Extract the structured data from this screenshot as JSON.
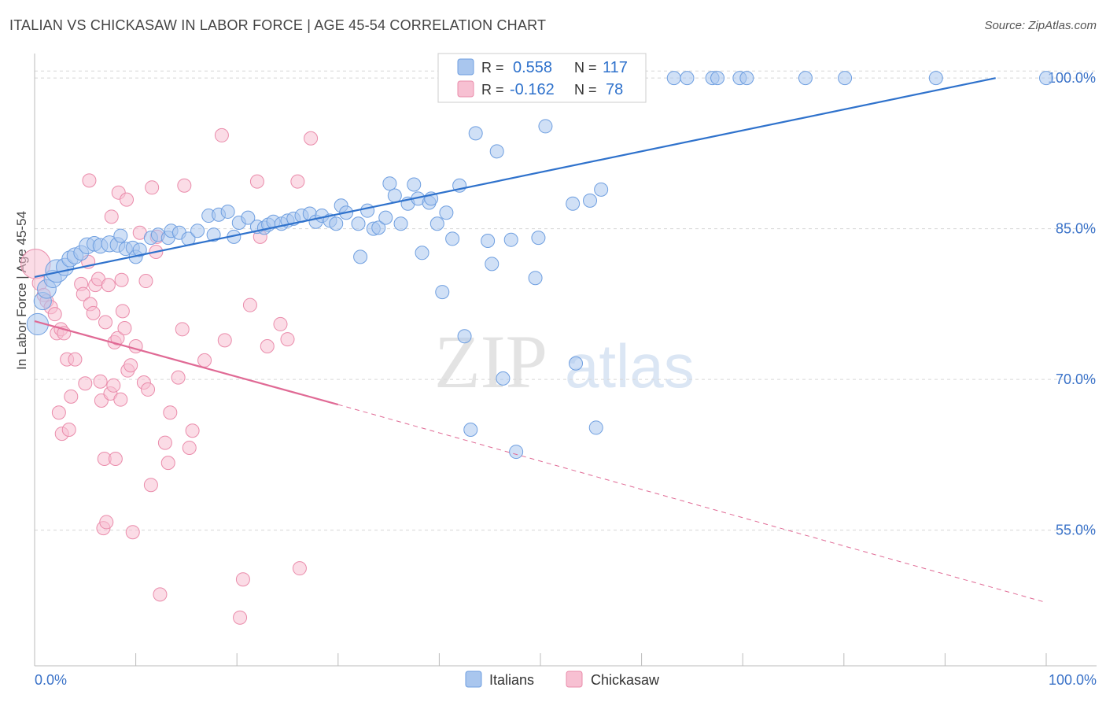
{
  "header": {
    "title": "ITALIAN VS CHICKASAW IN LABOR FORCE | AGE 45-54 CORRELATION CHART",
    "source": "Source: ZipAtlas.com"
  },
  "watermark": {
    "zip": "ZIP",
    "atlas": "atlas"
  },
  "legend_box": {
    "rows": [
      {
        "r_label": "R =",
        "r_value": "0.558",
        "n_label": "N =",
        "n_value": "117"
      },
      {
        "r_label": "R =",
        "r_value": "-0.162",
        "n_label": "N =",
        "n_value": "78"
      }
    ]
  },
  "bottom_legend": {
    "italians": "Italians",
    "chickasaw": "Chickasaw"
  },
  "colors": {
    "italians_fill": "#a9c6ee",
    "italians_stroke": "#6f9fe0",
    "italians_line": "#2f72cc",
    "chickasaw_fill": "#f7c0d2",
    "chickasaw_stroke": "#ea8cab",
    "chickasaw_line": "#e06a95",
    "axis_text": "#3a72c8",
    "grid": "#d8d8d8"
  },
  "chart_data": {
    "type": "scatter",
    "title": "ITALIAN VS CHICKASAW IN LABOR FORCE | AGE 45-54 CORRELATION CHART",
    "ylabel": "In Labor Force | Age 45-54",
    "xlabel": "",
    "xlim": [
      0,
      100
    ],
    "ylim": [
      41.5,
      101.5
    ],
    "x_tick_labels": [
      "0.0%",
      "100.0%"
    ],
    "y_tick_values": [
      55,
      70,
      85,
      100
    ],
    "y_tick_labels": [
      "55.0%",
      "70.0%",
      "85.0%",
      "100.0%"
    ],
    "grid": true,
    "legend_position": "top-center",
    "series": [
      {
        "name": "Italians",
        "R": 0.558,
        "N": 117,
        "trend": {
          "x0": 0,
          "y0": 80.2,
          "x1": 95,
          "y1": 100,
          "dashed_to": null
        },
        "points": [
          [
            0.3,
            75.5,
            1.6
          ],
          [
            0.8,
            77.8,
            1.3
          ],
          [
            1.2,
            79.0,
            1.4
          ],
          [
            1.8,
            80.0,
            1.3
          ],
          [
            2.2,
            80.8,
            1.7
          ],
          [
            3.0,
            81.2,
            1.3
          ],
          [
            3.5,
            82.0,
            1.2
          ],
          [
            4.0,
            82.3,
            1.2
          ],
          [
            4.6,
            82.6,
            1.1
          ],
          [
            5.2,
            83.3,
            1.2
          ],
          [
            5.9,
            83.5,
            1.1
          ],
          [
            6.5,
            83.3,
            1.1
          ],
          [
            7.4,
            83.5,
            1.2
          ],
          [
            8.2,
            83.4,
            1.1
          ],
          [
            8.5,
            84.3,
            1.0
          ],
          [
            9.0,
            83.0,
            1.0
          ],
          [
            9.7,
            83.1,
            1.0
          ],
          [
            10.0,
            82.2,
            1.0
          ],
          [
            10.4,
            82.9,
            1.0
          ],
          [
            11.5,
            84.1,
            1.0
          ],
          [
            12.2,
            84.4,
            1.0
          ],
          [
            13.2,
            84.1,
            1.0
          ],
          [
            13.5,
            84.8,
            1.0
          ],
          [
            14.3,
            84.6,
            1.0
          ],
          [
            15.2,
            84.0,
            1.0
          ],
          [
            16.1,
            84.8,
            1.0
          ],
          [
            17.2,
            86.3,
            1.0
          ],
          [
            17.7,
            84.4,
            1.0
          ],
          [
            18.2,
            86.4,
            1.0
          ],
          [
            19.1,
            86.7,
            1.0
          ],
          [
            19.7,
            84.2,
            1.0
          ],
          [
            20.2,
            85.6,
            1.0
          ],
          [
            21.1,
            86.1,
            1.0
          ],
          [
            22.0,
            85.2,
            1.0
          ],
          [
            22.7,
            85.1,
            1.0
          ],
          [
            23.1,
            85.4,
            1.0
          ],
          [
            23.6,
            85.7,
            1.0
          ],
          [
            24.4,
            85.5,
            1.0
          ],
          [
            25.0,
            85.8,
            1.0
          ],
          [
            25.6,
            86.0,
            1.0
          ],
          [
            26.4,
            86.3,
            1.0
          ],
          [
            27.2,
            86.5,
            1.0
          ],
          [
            27.8,
            85.7,
            1.0
          ],
          [
            28.4,
            86.3,
            1.0
          ],
          [
            29.2,
            85.8,
            1.0
          ],
          [
            29.8,
            85.5,
            1.0
          ],
          [
            30.3,
            87.3,
            1.0
          ],
          [
            30.8,
            86.6,
            1.0
          ],
          [
            32.0,
            85.5,
            1.0
          ],
          [
            32.2,
            82.2,
            1.0
          ],
          [
            32.9,
            86.8,
            1.0
          ],
          [
            33.5,
            85.0,
            1.0
          ],
          [
            34.0,
            85.1,
            1.0
          ],
          [
            34.7,
            86.1,
            1.0
          ],
          [
            35.1,
            89.5,
            1.0
          ],
          [
            35.6,
            88.3,
            1.0
          ],
          [
            36.2,
            85.5,
            1.0
          ],
          [
            36.9,
            87.5,
            1.0
          ],
          [
            37.5,
            89.4,
            1.0
          ],
          [
            37.9,
            88.0,
            1.0
          ],
          [
            38.3,
            82.6,
            1.0
          ],
          [
            39.0,
            87.6,
            1.0
          ],
          [
            39.2,
            88.0,
            1.0
          ],
          [
            39.8,
            85.5,
            1.0
          ],
          [
            40.3,
            78.7,
            1.0
          ],
          [
            40.7,
            86.6,
            1.0
          ],
          [
            41.3,
            84.0,
            1.0
          ],
          [
            42.0,
            89.3,
            1.0
          ],
          [
            42.5,
            74.3,
            1.0
          ],
          [
            43.1,
            65.0,
            1.0
          ],
          [
            43.6,
            94.5,
            1.0
          ],
          [
            44.8,
            83.8,
            1.0
          ],
          [
            45.2,
            81.5,
            1.0
          ],
          [
            45.7,
            92.7,
            1.0
          ],
          [
            46.3,
            70.1,
            1.0
          ],
          [
            47.1,
            83.9,
            1.0
          ],
          [
            47.6,
            62.8,
            1.0
          ],
          [
            49.5,
            80.1,
            1.0
          ],
          [
            49.8,
            84.1,
            1.0
          ],
          [
            50.5,
            95.2,
            1.0
          ],
          [
            51.1,
            100.0,
            1.0
          ],
          [
            52.1,
            100.0,
            1.0
          ],
          [
            53.2,
            87.5,
            1.0
          ],
          [
            53.5,
            71.6,
            1.0
          ],
          [
            54.9,
            87.8,
            1.0
          ],
          [
            55.5,
            65.2,
            1.0
          ],
          [
            56.0,
            88.9,
            1.0
          ],
          [
            56.6,
            100.0,
            1.0
          ],
          [
            58.2,
            100.0,
            1.0
          ],
          [
            59.0,
            100.0,
            1.0
          ],
          [
            63.2,
            100.0,
            1.0
          ],
          [
            64.5,
            100.0,
            1.0
          ],
          [
            67.0,
            100.0,
            1.0
          ],
          [
            67.5,
            100.0,
            1.0
          ],
          [
            69.7,
            100.0,
            1.0
          ],
          [
            70.4,
            100.0,
            1.0
          ],
          [
            76.2,
            100.0,
            1.0
          ],
          [
            80.1,
            100.0,
            1.0
          ],
          [
            89.1,
            100.0,
            1.0
          ],
          [
            100.0,
            100.0,
            1.0
          ]
        ]
      },
      {
        "name": "Chickasaw",
        "R": -0.162,
        "N": 78,
        "trend": {
          "x0": 0,
          "y0": 75.8,
          "x1": 30,
          "y1": 67.5,
          "dashed_to": {
            "x": 100,
            "y": 47.8
          }
        },
        "points": [
          [
            0.1,
            81.5,
            2.2
          ],
          [
            0.5,
            79.6,
            1.1
          ],
          [
            0.9,
            78.4,
            1.0
          ],
          [
            1.2,
            77.8,
            1.0
          ],
          [
            1.6,
            77.2,
            1.0
          ],
          [
            2.0,
            76.5,
            1.0
          ],
          [
            2.2,
            74.6,
            1.0
          ],
          [
            2.4,
            66.7,
            1.0
          ],
          [
            2.6,
            75.0,
            1.0
          ],
          [
            2.7,
            64.6,
            1.0
          ],
          [
            2.9,
            74.6,
            1.0
          ],
          [
            3.2,
            72.0,
            1.0
          ],
          [
            3.4,
            65.0,
            1.0
          ],
          [
            3.6,
            68.3,
            1.0
          ],
          [
            4.0,
            72.0,
            1.0
          ],
          [
            4.6,
            79.5,
            1.0
          ],
          [
            4.8,
            78.5,
            1.0
          ],
          [
            5.0,
            69.6,
            1.0
          ],
          [
            5.3,
            81.7,
            1.0
          ],
          [
            5.5,
            77.5,
            1.0
          ],
          [
            5.8,
            76.6,
            1.0
          ],
          [
            5.4,
            89.8,
            1.0
          ],
          [
            6.0,
            79.4,
            1.0
          ],
          [
            6.3,
            80.0,
            1.0
          ],
          [
            6.5,
            69.8,
            1.0
          ],
          [
            6.6,
            67.9,
            1.0
          ],
          [
            6.8,
            55.2,
            1.0
          ],
          [
            6.9,
            62.1,
            1.0
          ],
          [
            7.0,
            75.7,
            1.0
          ],
          [
            7.1,
            55.8,
            1.0
          ],
          [
            7.3,
            79.4,
            1.0
          ],
          [
            7.5,
            68.6,
            1.0
          ],
          [
            7.6,
            86.2,
            1.0
          ],
          [
            7.8,
            69.4,
            1.0
          ],
          [
            7.9,
            73.7,
            1.0
          ],
          [
            8.0,
            62.1,
            1.0
          ],
          [
            8.2,
            74.1,
            1.0
          ],
          [
            8.3,
            88.6,
            1.0
          ],
          [
            8.5,
            68.0,
            1.0
          ],
          [
            8.6,
            79.9,
            1.0
          ],
          [
            8.7,
            76.8,
            1.0
          ],
          [
            8.9,
            75.1,
            1.0
          ],
          [
            9.1,
            87.9,
            1.0
          ],
          [
            9.2,
            70.9,
            1.0
          ],
          [
            9.5,
            71.4,
            1.0
          ],
          [
            9.7,
            54.8,
            1.0
          ],
          [
            10.0,
            73.3,
            1.0
          ],
          [
            10.4,
            84.6,
            1.0
          ],
          [
            10.8,
            69.7,
            1.0
          ],
          [
            11.0,
            79.8,
            1.0
          ],
          [
            11.2,
            69.0,
            1.0
          ],
          [
            11.5,
            59.5,
            1.0
          ],
          [
            11.6,
            89.1,
            1.0
          ],
          [
            12.0,
            82.7,
            1.0
          ],
          [
            12.1,
            84.2,
            1.0
          ],
          [
            12.4,
            48.6,
            1.0
          ],
          [
            12.9,
            63.7,
            1.0
          ],
          [
            13.2,
            61.7,
            1.0
          ],
          [
            13.4,
            66.7,
            1.0
          ],
          [
            14.2,
            70.2,
            1.0
          ],
          [
            14.6,
            75.0,
            1.0
          ],
          [
            14.8,
            89.3,
            1.0
          ],
          [
            15.3,
            63.2,
            1.0
          ],
          [
            15.6,
            64.9,
            1.0
          ],
          [
            16.8,
            71.9,
            1.0
          ],
          [
            18.5,
            94.3,
            1.0
          ],
          [
            18.8,
            73.9,
            1.0
          ],
          [
            20.3,
            46.3,
            1.0
          ],
          [
            20.6,
            50.1,
            1.0
          ],
          [
            21.3,
            77.4,
            1.0
          ],
          [
            22.0,
            89.7,
            1.0
          ],
          [
            22.3,
            84.2,
            1.0
          ],
          [
            23.0,
            73.3,
            1.0
          ],
          [
            24.3,
            75.5,
            1.0
          ],
          [
            25.0,
            74.0,
            1.0
          ],
          [
            26.0,
            89.7,
            1.0
          ],
          [
            26.2,
            51.2,
            1.0
          ],
          [
            27.3,
            94.0,
            1.0
          ]
        ]
      }
    ]
  }
}
